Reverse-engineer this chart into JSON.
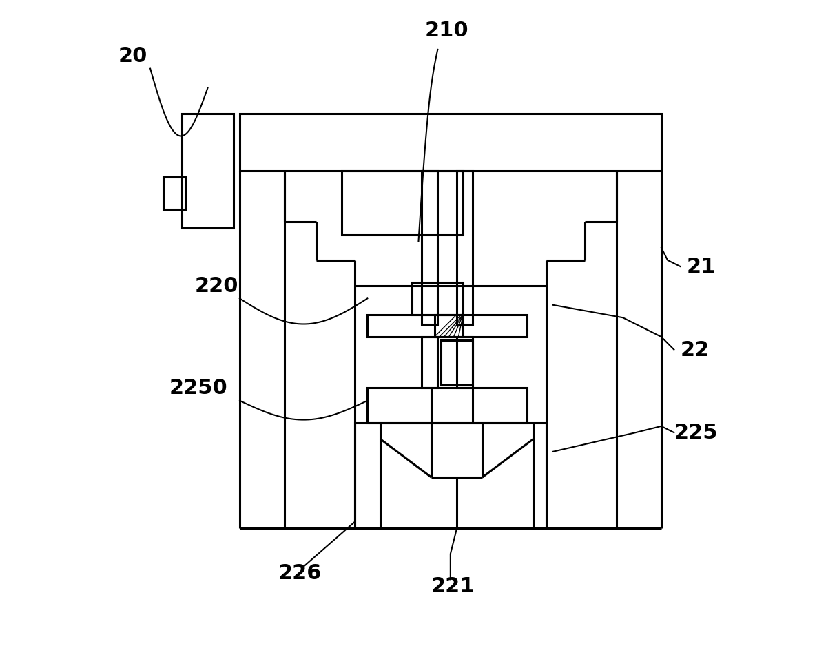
{
  "bg_color": "#ffffff",
  "line_color": "#000000",
  "lw": 2.2,
  "lw_thin": 1.5,
  "font_size": 22,
  "font_weight": "bold"
}
